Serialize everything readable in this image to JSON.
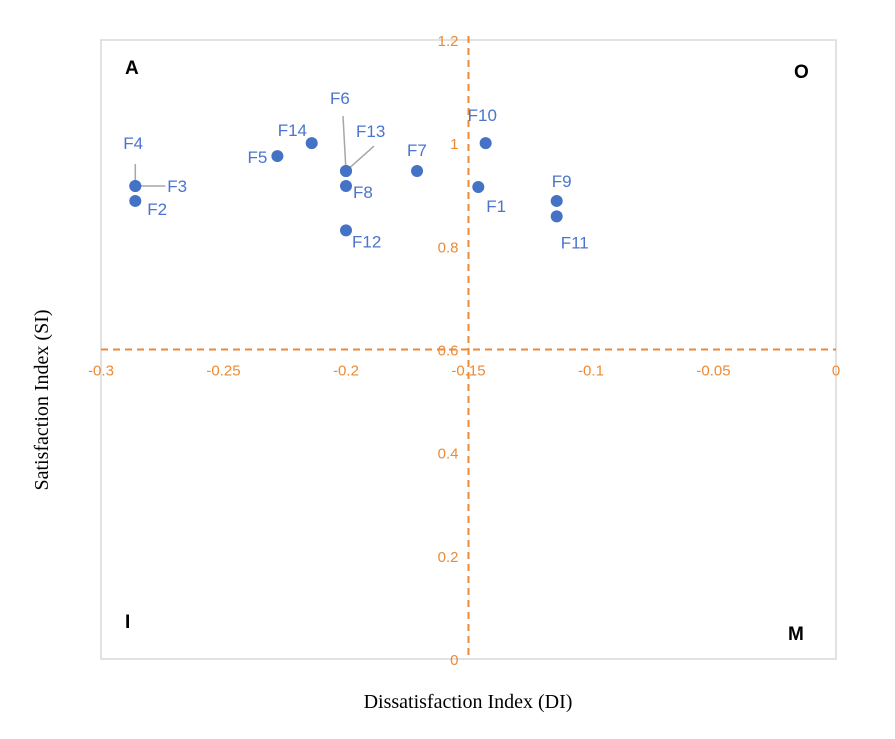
{
  "chart_data": {
    "type": "scatter",
    "title": "",
    "xlabel": "Dissatisfaction Index (DI)",
    "ylabel": "Satisfaction Index (SI)",
    "xlim": [
      -0.3,
      0
    ],
    "ylim": [
      0,
      1.2
    ],
    "x_ticks": [
      "-0.3",
      "-0.25",
      "-0.2",
      "-0.15",
      "-0.1",
      "-0.05",
      "0"
    ],
    "y_ticks": [
      "0",
      "0.2",
      "0.4",
      "0.6",
      "0.8",
      "1",
      "1.2"
    ],
    "grid": false,
    "crosshair": {
      "x": -0.15,
      "y": 0.6
    },
    "quadrant_labels": {
      "top_left": "A",
      "top_right": "O",
      "bottom_left": "I",
      "bottom_right": "M"
    },
    "colors": {
      "points": "#4472c4",
      "labels": "#4a74cf",
      "axis": "#ed8a35",
      "frame": "#d9d9d9"
    },
    "points": [
      {
        "label": "F1",
        "x": -0.146,
        "y": 0.915
      },
      {
        "label": "F2",
        "x": -0.286,
        "y": 0.888
      },
      {
        "label": "F3",
        "x": -0.286,
        "y": 0.917
      },
      {
        "label": "F4",
        "x": -0.286,
        "y": 0.917
      },
      {
        "label": "F5",
        "x": -0.228,
        "y": 0.975
      },
      {
        "label": "F6",
        "x": -0.2,
        "y": 0.946
      },
      {
        "label": "F7",
        "x": -0.171,
        "y": 0.946
      },
      {
        "label": "F8",
        "x": -0.2,
        "y": 0.917
      },
      {
        "label": "F9",
        "x": -0.114,
        "y": 0.888
      },
      {
        "label": "F10",
        "x": -0.143,
        "y": 1.0
      },
      {
        "label": "F11",
        "x": -0.114,
        "y": 0.858
      },
      {
        "label": "F12",
        "x": -0.2,
        "y": 0.831
      },
      {
        "label": "F13",
        "x": -0.2,
        "y": 0.946
      },
      {
        "label": "F14",
        "x": -0.214,
        "y": 1.0
      }
    ]
  }
}
